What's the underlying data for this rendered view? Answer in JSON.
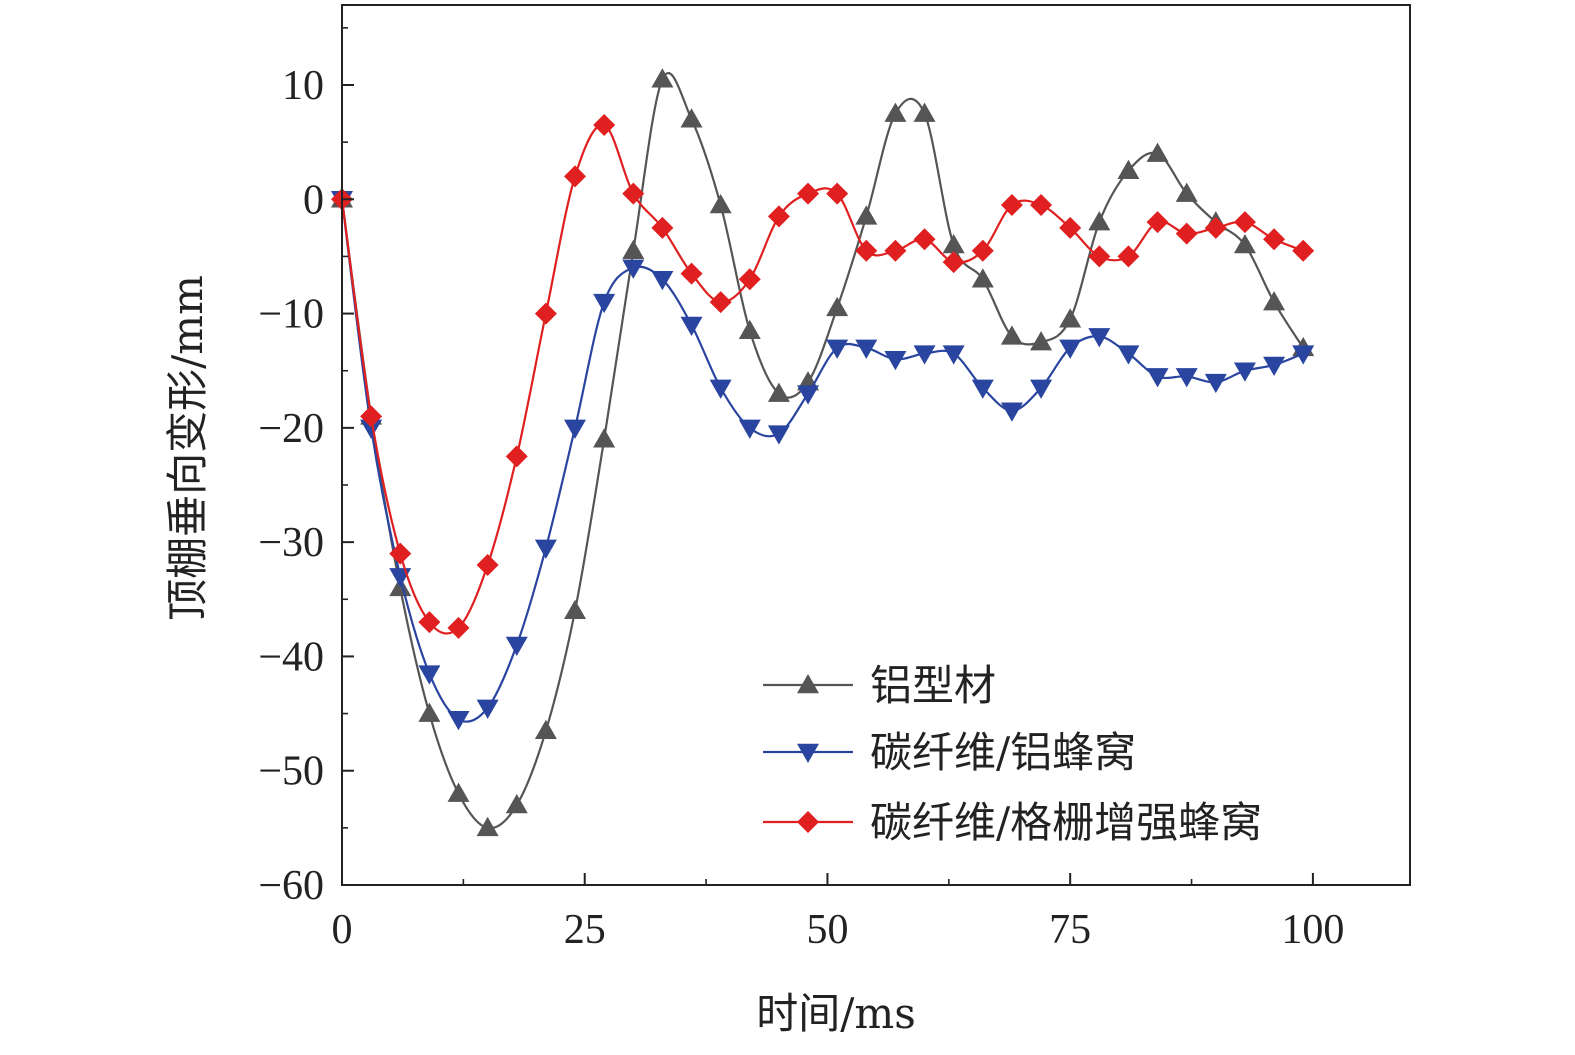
{
  "chart_data": {
    "type": "line",
    "title": "",
    "xlabel": "时间/ms",
    "ylabel": "顶棚垂向变形/mm",
    "xlim": [
      0,
      110
    ],
    "ylim": [
      -60,
      17
    ],
    "xticks": [
      0,
      25,
      50,
      75,
      100
    ],
    "xtick_labels": [
      "0",
      "25",
      "50",
      "75",
      "100"
    ],
    "yticks": [
      10,
      0,
      -10,
      -20,
      -30,
      -40,
      -50,
      -60
    ],
    "ytick_labels": [
      "10",
      "0",
      "−10",
      "−20",
      "−30",
      "−40",
      "−50",
      "−60"
    ],
    "grid": false,
    "legend_position": "bottom-right",
    "x": [
      0,
      3,
      6,
      9,
      12,
      15,
      18,
      21,
      24,
      27,
      30,
      33,
      36,
      39,
      42,
      45,
      48,
      51,
      54,
      57,
      60,
      63,
      66,
      69,
      72,
      75,
      78,
      81,
      84,
      87,
      90,
      93,
      96,
      99
    ],
    "series": [
      {
        "name": "铝型材",
        "color": "#555555",
        "marker": "triangle-up",
        "values": [
          0,
          -19,
          -34,
          -45,
          -52,
          -55,
          -53,
          -46.5,
          -36,
          -21,
          -4.5,
          10.5,
          7,
          -0.5,
          -11.5,
          -17,
          -16,
          -9.5,
          -1.5,
          7.5,
          7.5,
          -4,
          -7,
          -12,
          -12.5,
          -10.5,
          -2,
          2.5,
          4,
          0.5,
          -2,
          -4,
          -9,
          -13
        ]
      },
      {
        "name": "碳纤维/铝蜂窝",
        "color": "#2a45a0",
        "marker": "triangle-down",
        "values": [
          0,
          -20,
          -33,
          -41.5,
          -45.5,
          -44.5,
          -39,
          -30.5,
          -20,
          -9,
          -6,
          -7,
          -11,
          -16.5,
          -20,
          -20.5,
          -17,
          -13,
          -13,
          -14,
          -13.5,
          -13.5,
          -16.5,
          -18.5,
          -16.5,
          -13,
          -12,
          -13.5,
          -15.5,
          -15.5,
          -16,
          -15,
          -14.5,
          -13.5
        ]
      },
      {
        "name": "碳纤维/格栅增强蜂窝",
        "color": "#e02020",
        "marker": "diamond",
        "values": [
          0,
          -19,
          -31,
          -37,
          -37.5,
          -32,
          -22.5,
          -10,
          2,
          6.5,
          0.5,
          -2.5,
          -6.5,
          -9,
          -7,
          -1.5,
          0.5,
          0.5,
          -4.5,
          -4.5,
          -3.5,
          -5.5,
          -4.5,
          -0.5,
          -0.5,
          -2.5,
          -5,
          -5,
          -2,
          -3,
          -2.5,
          -2,
          -3.5,
          -4.5
        ]
      }
    ]
  }
}
